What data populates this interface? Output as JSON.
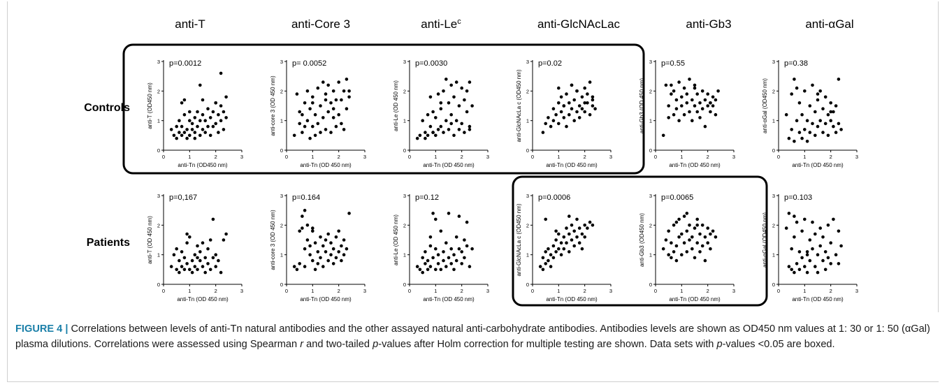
{
  "columns": [
    "anti-T",
    "anti-Core 3",
    "anti-Le",
    "anti-GlcNAcLac",
    "anti-Gb3",
    "anti-αGal"
  ],
  "column_superscripts": [
    "",
    "",
    "c",
    "",
    "",
    ""
  ],
  "rows": [
    "Controls",
    "Patients"
  ],
  "x_axis_label": "anti-Tn (OD 450 nm)",
  "x_axis_label_alt": "anti-Tn (OD450 nm)",
  "axis_ticks": [
    "0",
    "1",
    "2",
    "3"
  ],
  "caption": {
    "lead": "FIGURE 4 |",
    "p1": " Correlations between levels of anti-Tn natural antibodies and the other assayed natural anti-carbohydrate antibodies. Antibodies levels are shown as OD450 nm values at 1: 30 or 1: 50 (αGal) plasma dilutions. Correlations were assessed using Spearman ",
    "r": "r",
    "p2": " and two-tailed ",
    "p": "p",
    "p3": "-values after Holm correction for multiple testing are shown. Data sets with ",
    "p4": "-values <0.05 are boxed."
  },
  "colors": {
    "points": "#000000",
    "box": "#000000",
    "caption_lead": "#1a7fa8"
  },
  "chart_data": [
    {
      "type": "scatter",
      "row": "Controls",
      "column": "anti-T",
      "ylabel": "anti-T (OD450 nm)",
      "xlabel": "anti-Tn (OD450 nm)",
      "annotation": "p=0.0012",
      "boxed": true,
      "xlim": [
        0,
        3
      ],
      "ylim": [
        0,
        3
      ],
      "x": [
        0.3,
        0.4,
        0.5,
        0.5,
        0.6,
        0.6,
        0.7,
        0.7,
        0.7,
        0.8,
        0.8,
        0.9,
        0.9,
        1.0,
        1.0,
        1.0,
        1.1,
        1.1,
        1.2,
        1.2,
        1.2,
        1.3,
        1.3,
        1.4,
        1.4,
        1.5,
        1.5,
        1.5,
        1.6,
        1.6,
        1.7,
        1.7,
        1.8,
        1.8,
        1.9,
        1.9,
        2.0,
        2.0,
        2.1,
        2.1,
        2.2,
        2.2,
        2.2,
        2.3,
        2.3,
        2.4,
        2.4,
        0.8,
        1.4,
        2.0
      ],
      "y": [
        0.7,
        0.5,
        0.8,
        0.4,
        1.0,
        0.6,
        0.5,
        1.6,
        0.8,
        0.6,
        1.2,
        0.7,
        0.4,
        1.0,
        0.5,
        1.3,
        0.7,
        0.9,
        0.6,
        1.1,
        0.4,
        0.8,
        1.3,
        0.5,
        1.0,
        0.7,
        1.2,
        1.7,
        0.6,
        1.0,
        1.4,
        0.8,
        1.1,
        0.5,
        1.3,
        0.8,
        1.6,
        0.9,
        1.2,
        0.6,
        1.5,
        1.0,
        2.6,
        0.7,
        1.3,
        1.8,
        1.1,
        1.7,
        2.2,
        1.6
      ]
    },
    {
      "type": "scatter",
      "row": "Controls",
      "column": "anti-Core 3",
      "ylabel": "anti-core 3 (OD 450 nm)",
      "xlabel": "anti-Tn (OD 450 nm)",
      "annotation": "p= 0.0052",
      "boxed": true,
      "xlim": [
        0,
        3
      ],
      "ylim": [
        0,
        3
      ],
      "x": [
        0.3,
        0.4,
        0.5,
        0.5,
        0.6,
        0.7,
        0.7,
        0.8,
        0.8,
        0.9,
        0.9,
        1.0,
        1.0,
        1.1,
        1.1,
        1.2,
        1.2,
        1.3,
        1.3,
        1.4,
        1.4,
        1.5,
        1.5,
        1.6,
        1.6,
        1.7,
        1.7,
        1.8,
        1.8,
        1.9,
        1.9,
        2.0,
        2.0,
        2.1,
        2.1,
        2.2,
        2.2,
        2.3,
        2.3,
        2.4,
        0.6,
        1.5,
        2.4,
        1.0,
        1.8
      ],
      "y": [
        0.5,
        1.9,
        0.9,
        1.3,
        0.6,
        1.6,
        0.8,
        1.0,
        2.0,
        0.4,
        1.4,
        0.8,
        1.8,
        0.5,
        1.2,
        2.1,
        0.9,
        1.5,
        0.6,
        2.3,
        1.1,
        0.7,
        1.9,
        1.3,
        2.2,
        0.6,
        1.6,
        2.0,
        1.1,
        0.8,
        1.7,
        2.3,
        1.2,
        0.9,
        1.7,
        2.0,
        0.7,
        1.4,
        2.4,
        1.8,
        1.2,
        1.7,
        2.0,
        1.6,
        1.4
      ]
    },
    {
      "type": "scatter",
      "row": "Controls",
      "column": "anti-Le",
      "ylabel": "anti-Le (OD 450 nm)",
      "xlabel": "anti-Tn (OD 450 nm)",
      "annotation": "p=0.0030",
      "boxed": true,
      "xlim": [
        0,
        3
      ],
      "ylim": [
        0,
        3
      ],
      "x": [
        0.3,
        0.4,
        0.5,
        0.6,
        0.6,
        0.7,
        0.7,
        0.8,
        0.8,
        0.9,
        0.9,
        1.0,
        1.0,
        1.1,
        1.1,
        1.2,
        1.2,
        1.3,
        1.3,
        1.4,
        1.4,
        1.5,
        1.5,
        1.6,
        1.6,
        1.7,
        1.7,
        1.8,
        1.8,
        1.9,
        1.9,
        2.0,
        2.0,
        2.1,
        2.1,
        2.2,
        2.2,
        2.3,
        2.3,
        2.4,
        0.9,
        1.6,
        2.3,
        1.2
      ],
      "y": [
        0.4,
        0.5,
        1.0,
        0.6,
        0.4,
        1.2,
        0.5,
        0.8,
        1.8,
        0.6,
        1.3,
        0.5,
        1.1,
        0.7,
        1.9,
        0.8,
        1.4,
        0.6,
        2.0,
        1.0,
        2.4,
        0.7,
        1.6,
        1.2,
        2.2,
        0.5,
        1.8,
        1.0,
        2.3,
        0.7,
        1.5,
        0.9,
        2.1,
        0.6,
        1.7,
        1.3,
        2.0,
        0.8,
        2.3,
        1.5,
        0.6,
        0.9,
        0.7,
        1.6
      ]
    },
    {
      "type": "scatter",
      "row": "Controls",
      "column": "anti-GlcNAcLac",
      "ylabel": "anti-GlcNAcLa c (OD450 nm)",
      "xlabel": "anti-Tn (OD 450 nm)",
      "annotation": "p=0.02",
      "boxed": true,
      "xlim": [
        0,
        3
      ],
      "ylim": [
        0,
        3
      ],
      "x": [
        0.4,
        0.5,
        0.6,
        0.7,
        0.8,
        0.8,
        0.9,
        1.0,
        1.0,
        1.1,
        1.1,
        1.2,
        1.2,
        1.3,
        1.3,
        1.4,
        1.4,
        1.5,
        1.5,
        1.6,
        1.6,
        1.7,
        1.7,
        1.8,
        1.8,
        1.9,
        1.9,
        2.0,
        2.0,
        2.1,
        2.1,
        2.2,
        2.2,
        2.3,
        2.3,
        2.4,
        1.0,
        1.5,
        2.0,
        2.3,
        1.7,
        1.2
      ],
      "y": [
        0.6,
        0.9,
        1.1,
        0.8,
        1.4,
        1.0,
        1.2,
        1.6,
        0.9,
        1.3,
        1.8,
        1.1,
        1.5,
        0.8,
        1.9,
        1.2,
        1.6,
        1.4,
        2.2,
        1.0,
        1.7,
        1.3,
        2.0,
        1.5,
        1.1,
        1.8,
        1.4,
        2.1,
        1.3,
        1.6,
        1.9,
        1.2,
        2.3,
        1.5,
        1.8,
        1.4,
        2.1,
        2.2,
        1.6,
        1.7,
        2.0,
        1.5
      ]
    },
    {
      "type": "scatter",
      "row": "Controls",
      "column": "anti-Gb3",
      "ylabel": "anti-Gb3 (OD 450 nm)",
      "xlabel": "anti-Tn (OD 450 nm)",
      "annotation": "p=0.55",
      "boxed": false,
      "xlim": [
        0,
        3
      ],
      "ylim": [
        0,
        3
      ],
      "x": [
        0.3,
        0.4,
        0.5,
        0.5,
        0.6,
        0.7,
        0.7,
        0.8,
        0.8,
        0.9,
        0.9,
        1.0,
        1.0,
        1.1,
        1.1,
        1.2,
        1.2,
        1.3,
        1.3,
        1.4,
        1.4,
        1.5,
        1.5,
        1.6,
        1.6,
        1.7,
        1.7,
        1.8,
        1.8,
        1.9,
        1.9,
        2.0,
        2.0,
        2.1,
        2.1,
        2.2,
        2.2,
        2.3,
        2.3,
        2.4,
        0.6,
        1.5,
        2.1
      ],
      "y": [
        0.5,
        2.2,
        1.5,
        1.1,
        1.9,
        1.2,
        2.0,
        1.7,
        1.4,
        2.3,
        1.0,
        1.8,
        1.5,
        1.2,
        2.1,
        1.6,
        1.9,
        1.3,
        2.4,
        1.7,
        1.0,
        1.5,
        2.2,
        1.3,
        1.9,
        1.6,
        1.1,
        2.0,
        1.4,
        1.7,
        0.8,
        1.5,
        1.9,
        1.6,
        1.3,
        1.8,
        1.5,
        1.7,
        1.2,
        2.0,
        2.2,
        2.1,
        1.6
      ]
    },
    {
      "type": "scatter",
      "row": "Controls",
      "column": "anti-αGal",
      "ylabel": "anti-αGal (OD450 nm)",
      "xlabel": "anti-Tn (OD 450 nm)",
      "annotation": "p=0.38",
      "boxed": false,
      "xlim": [
        0,
        3
      ],
      "ylim": [
        0,
        3
      ],
      "x": [
        0.3,
        0.4,
        0.5,
        0.5,
        0.6,
        0.6,
        0.7,
        0.8,
        0.8,
        0.9,
        0.9,
        1.0,
        1.0,
        1.1,
        1.1,
        1.2,
        1.2,
        1.3,
        1.3,
        1.4,
        1.4,
        1.5,
        1.5,
        1.6,
        1.6,
        1.7,
        1.7,
        1.8,
        1.8,
        1.9,
        1.9,
        2.0,
        2.0,
        2.1,
        2.1,
        2.2,
        2.2,
        2.3,
        2.3,
        2.4,
        0.7,
        1.5,
        2.0
      ],
      "y": [
        1.2,
        0.4,
        0.7,
        1.9,
        0.3,
        2.4,
        1.0,
        0.6,
        1.6,
        0.4,
        1.2,
        0.7,
        2.0,
        0.3,
        1.0,
        0.6,
        1.5,
        0.9,
        2.2,
        0.5,
        1.3,
        0.8,
        1.7,
        1.0,
        2.0,
        0.6,
        1.4,
        0.9,
        1.8,
        0.5,
        1.2,
        1.0,
        1.6,
        0.8,
        1.3,
        0.6,
        1.5,
        0.9,
        2.4,
        0.7,
        2.1,
        1.9,
        1.3
      ]
    },
    {
      "type": "scatter",
      "row": "Patients",
      "column": "anti-T",
      "ylabel": "anti-T (OD 450 nm)",
      "xlabel": "anti-Tn (OD 450 nm)",
      "annotation": "p=0,167",
      "boxed": false,
      "xlim": [
        0,
        3
      ],
      "ylim": [
        0,
        3
      ],
      "x": [
        0.3,
        0.4,
        0.5,
        0.5,
        0.6,
        0.6,
        0.7,
        0.7,
        0.8,
        0.8,
        0.9,
        0.9,
        1.0,
        1.0,
        1.1,
        1.1,
        1.2,
        1.2,
        1.3,
        1.3,
        1.4,
        1.4,
        1.5,
        1.5,
        1.6,
        1.6,
        1.7,
        1.7,
        1.8,
        1.8,
        1.9,
        1.9,
        2.0,
        2.0,
        2.1,
        2.2,
        2.3,
        2.4,
        0.9,
        1.3
      ],
      "y": [
        0.6,
        1.0,
        0.5,
        1.2,
        0.8,
        0.4,
        1.1,
        0.6,
        0.9,
        0.5,
        1.4,
        0.7,
        0.5,
        1.6,
        0.8,
        0.4,
        1.0,
        0.6,
        1.3,
        0.5,
        0.8,
        1.1,
        0.6,
        1.4,
        0.9,
        0.4,
        1.2,
        0.7,
        1.5,
        0.5,
        2.2,
        0.9,
        1.0,
        0.6,
        0.8,
        0.4,
        1.5,
        1.7,
        1.7,
        0.9
      ]
    },
    {
      "type": "scatter",
      "row": "Patients",
      "column": "anti-Core 3",
      "ylabel": "anti-core 3 (OD 450 nm)",
      "xlabel": "anti-Tn (OD 450 nm)",
      "annotation": "p=0.164",
      "boxed": false,
      "xlim": [
        0,
        3
      ],
      "ylim": [
        0,
        3
      ],
      "x": [
        0.3,
        0.4,
        0.5,
        0.6,
        0.6,
        0.7,
        0.7,
        0.8,
        0.8,
        0.9,
        0.9,
        1.0,
        1.0,
        1.1,
        1.1,
        1.2,
        1.2,
        1.3,
        1.3,
        1.4,
        1.4,
        1.5,
        1.5,
        1.6,
        1.6,
        1.7,
        1.7,
        1.8,
        1.8,
        1.9,
        1.9,
        2.0,
        2.0,
        2.1,
        2.1,
        2.2,
        2.2,
        2.3,
        2.4,
        0.7,
        1.0,
        0.5
      ],
      "y": [
        0.6,
        0.5,
        0.7,
        1.9,
        2.3,
        1.2,
        0.6,
        1.5,
        2.0,
        1.0,
        1.3,
        0.8,
        1.8,
        0.5,
        1.4,
        1.1,
        0.7,
        1.6,
        0.9,
        1.3,
        0.6,
        1.1,
        1.5,
        0.8,
        1.7,
        1.0,
        1.4,
        0.7,
        1.2,
        0.9,
        1.6,
        1.1,
        1.8,
        0.8,
        1.3,
        1.0,
        1.5,
        1.2,
        2.4,
        2.5,
        1.9,
        1.8
      ]
    },
    {
      "type": "scatter",
      "row": "Patients",
      "column": "anti-Le",
      "ylabel": "anti-Le (OD 450 nm)",
      "xlabel": "anti-Tn (OD 450 nm)",
      "annotation": "p=0.12",
      "boxed": false,
      "xlim": [
        0,
        3
      ],
      "ylim": [
        0,
        3
      ],
      "x": [
        0.3,
        0.4,
        0.5,
        0.5,
        0.6,
        0.6,
        0.7,
        0.7,
        0.8,
        0.8,
        0.9,
        0.9,
        1.0,
        1.0,
        1.1,
        1.1,
        1.2,
        1.2,
        1.3,
        1.3,
        1.4,
        1.4,
        1.5,
        1.5,
        1.6,
        1.6,
        1.7,
        1.7,
        1.8,
        1.8,
        1.9,
        1.9,
        2.0,
        2.0,
        2.1,
        2.1,
        2.2,
        2.2,
        2.3,
        2.4,
        0.8,
        1.0
      ],
      "y": [
        0.6,
        0.5,
        0.9,
        0.4,
        0.7,
        1.1,
        0.5,
        0.8,
        1.3,
        0.6,
        0.9,
        2.4,
        0.5,
        1.2,
        0.7,
        1.0,
        0.5,
        1.8,
        0.8,
        1.1,
        0.6,
        1.4,
        0.9,
        2.4,
        0.7,
        1.2,
        0.5,
        1.0,
        1.6,
        0.8,
        1.2,
        2.3,
        0.7,
        1.1,
        1.5,
        0.9,
        2.1,
        1.3,
        0.6,
        1.2,
        1.6,
        2.2
      ]
    },
    {
      "type": "scatter",
      "row": "Patients",
      "column": "anti-GlcNAcLac",
      "ylabel": "anti-GlcNAcLa c (OD450 nm)",
      "xlabel": "anti-Tn (OD 450 nm)",
      "annotation": "p=0.0006",
      "boxed": true,
      "xlim": [
        0,
        3
      ],
      "ylim": [
        0,
        3
      ],
      "x": [
        0.3,
        0.4,
        0.4,
        0.5,
        0.5,
        0.6,
        0.6,
        0.7,
        0.7,
        0.8,
        0.8,
        0.9,
        0.9,
        1.0,
        1.0,
        1.1,
        1.1,
        1.2,
        1.2,
        1.3,
        1.3,
        1.4,
        1.4,
        1.5,
        1.5,
        1.6,
        1.6,
        1.7,
        1.7,
        1.8,
        1.8,
        1.9,
        1.9,
        2.0,
        2.0,
        2.1,
        2.2,
        2.3,
        0.5,
        1.4,
        0.9
      ],
      "y": [
        0.6,
        0.9,
        0.5,
        0.7,
        1.1,
        0.8,
        1.2,
        0.6,
        1.0,
        1.3,
        0.9,
        1.5,
        1.1,
        1.2,
        1.7,
        1.0,
        1.4,
        1.6,
        1.2,
        1.9,
        1.4,
        1.7,
        1.1,
        2.0,
        1.5,
        1.3,
        1.8,
        1.6,
        2.2,
        1.4,
        1.9,
        1.7,
        1.2,
        2.0,
        1.6,
        1.9,
        2.1,
        2.0,
        2.2,
        2.3,
        1.8
      ]
    },
    {
      "type": "scatter",
      "row": "Patients",
      "column": "anti-Gb3",
      "ylabel": "anti-Gb3 (OD450 nm)",
      "xlabel": "anti-Tn (OD 450 nm)",
      "annotation": "p=0.0065",
      "boxed": true,
      "xlim": [
        0,
        3
      ],
      "ylim": [
        0,
        3
      ],
      "x": [
        0.3,
        0.4,
        0.5,
        0.5,
        0.6,
        0.6,
        0.7,
        0.7,
        0.8,
        0.8,
        0.9,
        0.9,
        1.0,
        1.0,
        1.1,
        1.1,
        1.2,
        1.2,
        1.3,
        1.3,
        1.4,
        1.4,
        1.5,
        1.5,
        1.6,
        1.6,
        1.7,
        1.7,
        1.8,
        1.8,
        1.9,
        1.9,
        2.0,
        2.0,
        2.1,
        2.1,
        2.2,
        2.3,
        1.2,
        0.8,
        1.6
      ],
      "y": [
        1.2,
        1.5,
        1.0,
        1.8,
        0.9,
        1.4,
        1.1,
        2.0,
        1.3,
        0.8,
        1.6,
        2.2,
        1.0,
        1.7,
        1.4,
        2.3,
        1.1,
        1.8,
        1.5,
        2.0,
        1.2,
        1.6,
        1.9,
        0.9,
        1.4,
        2.2,
        1.1,
        1.7,
        2.0,
        1.3,
        1.6,
        0.8,
        1.9,
        1.4,
        1.7,
        1.2,
        1.8,
        1.6,
        2.4,
        2.1,
        2.0
      ]
    },
    {
      "type": "scatter",
      "row": "Patients",
      "column": "anti-αGal",
      "ylabel": "anti-αGal (OD450 nm)",
      "xlabel": "anti-Tn (OD 450 nm)",
      "annotation": "p=0.103",
      "boxed": false,
      "xlim": [
        0,
        3
      ],
      "ylim": [
        0,
        3
      ],
      "x": [
        0.3,
        0.4,
        0.4,
        0.5,
        0.5,
        0.6,
        0.6,
        0.7,
        0.7,
        0.8,
        0.8,
        0.9,
        0.9,
        1.0,
        1.0,
        1.1,
        1.1,
        1.2,
        1.2,
        1.3,
        1.3,
        1.4,
        1.4,
        1.5,
        1.5,
        1.6,
        1.6,
        1.7,
        1.7,
        1.8,
        1.8,
        1.9,
        1.9,
        2.0,
        2.0,
        2.1,
        2.2,
        2.3,
        2.3,
        2.4,
        0.6,
        1.1
      ],
      "y": [
        1.9,
        0.6,
        2.4,
        1.2,
        0.5,
        1.6,
        0.4,
        2.1,
        0.7,
        1.1,
        0.5,
        1.8,
        0.9,
        0.6,
        2.2,
        1.0,
        0.4,
        1.5,
        0.8,
        2.1,
        1.2,
        0.6,
        1.7,
        1.0,
        0.4,
        1.9,
        1.3,
        0.8,
        1.6,
        0.5,
        1.1,
        2.0,
        0.9,
        1.4,
        0.7,
        2.2,
        1.0,
        1.8,
        0.7,
        1.3,
        2.3,
        1.1
      ]
    }
  ]
}
